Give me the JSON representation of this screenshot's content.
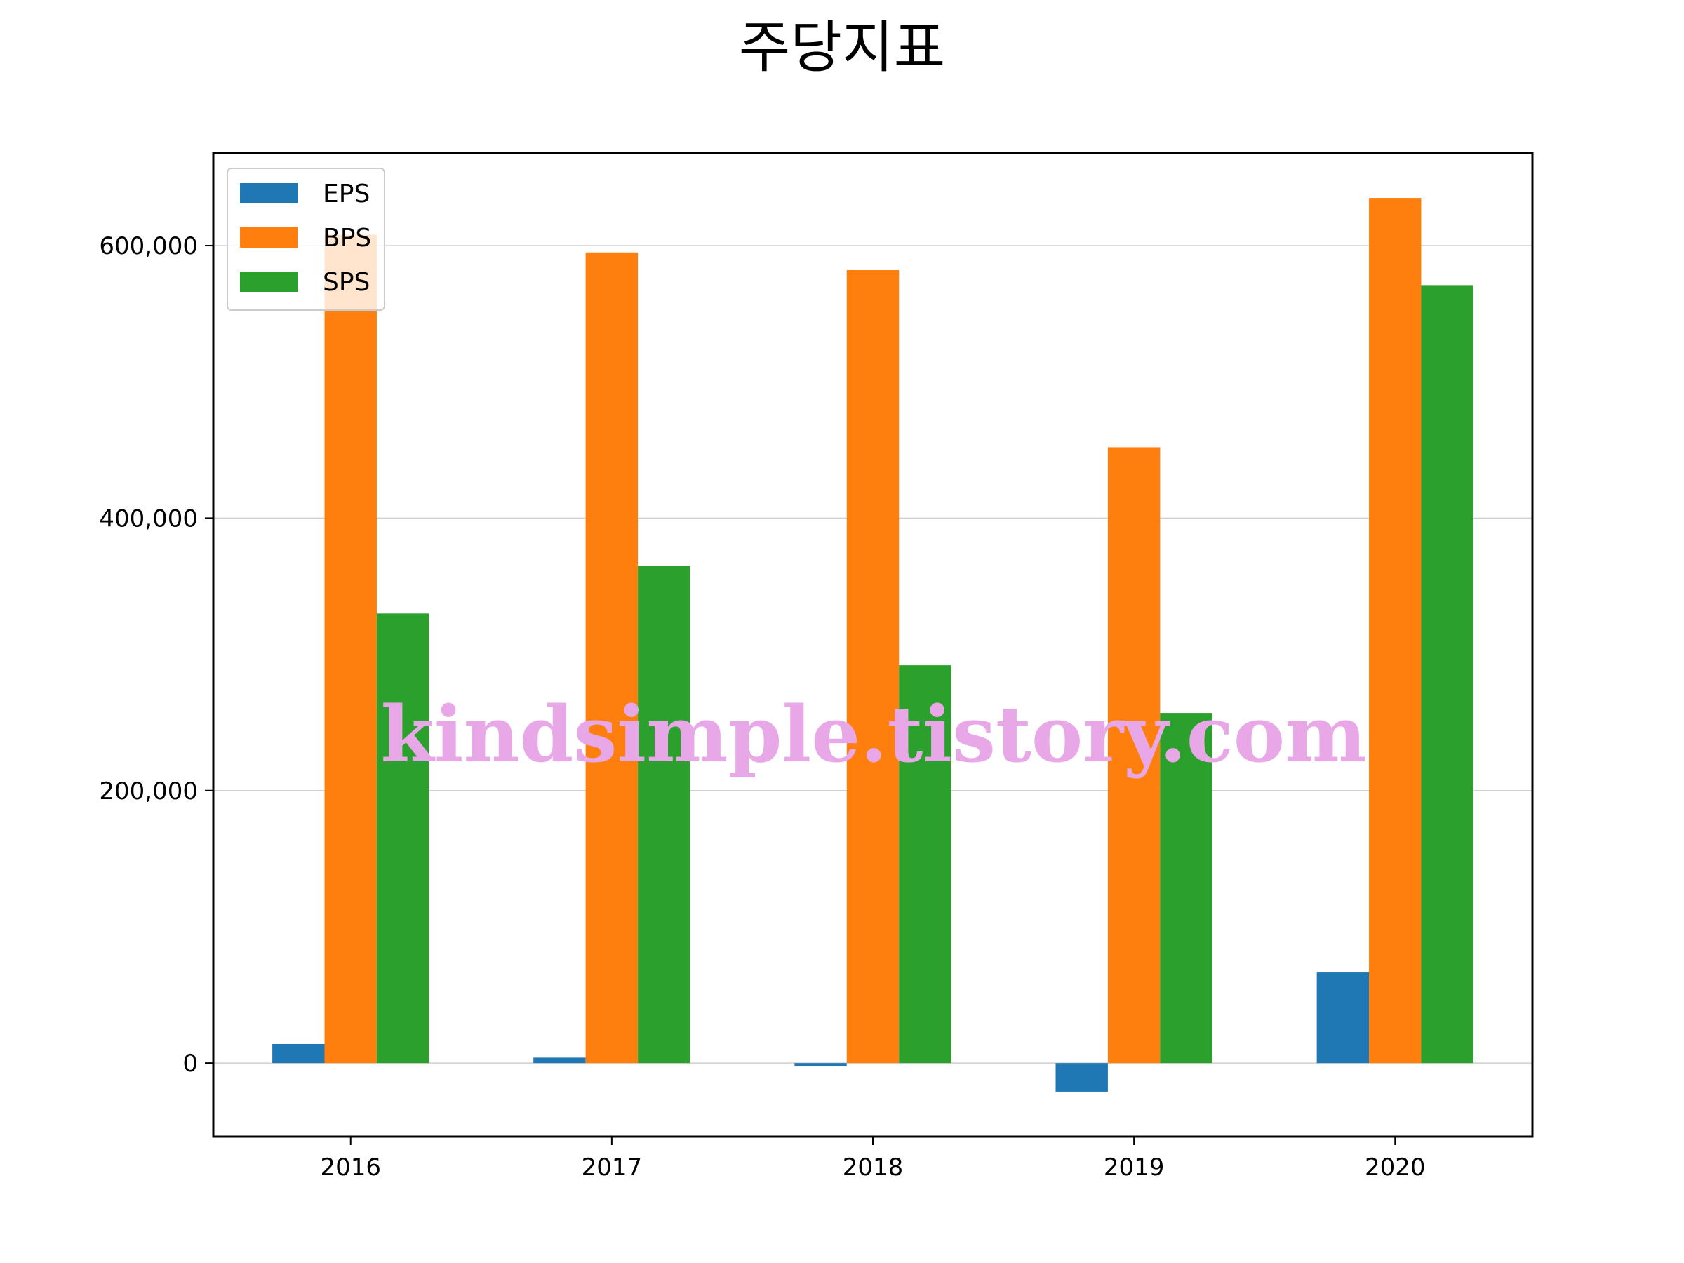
{
  "chart_data": {
    "type": "bar",
    "title": "주당지표",
    "xlabel": "",
    "ylabel": "",
    "categories": [
      "2016",
      "2017",
      "2018",
      "2019",
      "2020"
    ],
    "series": [
      {
        "name": "EPS",
        "color": "#1f77b4",
        "values": [
          14000,
          4000,
          -2000,
          -21000,
          67000
        ]
      },
      {
        "name": "BPS",
        "color": "#ff7f0e",
        "values": [
          608000,
          595000,
          582000,
          452000,
          635000
        ]
      },
      {
        "name": "SPS",
        "color": "#2ca02c",
        "values": [
          330000,
          365000,
          292000,
          257000,
          571000
        ]
      }
    ],
    "ylim": [
      -54000,
      668000
    ],
    "yticks": [
      0,
      200000,
      400000,
      600000
    ],
    "ytick_labels": [
      "0",
      "200,000",
      "400,000",
      "600,000"
    ],
    "grid": "y",
    "legend": "top-left",
    "watermark": "kindsimple.tistory.com"
  }
}
